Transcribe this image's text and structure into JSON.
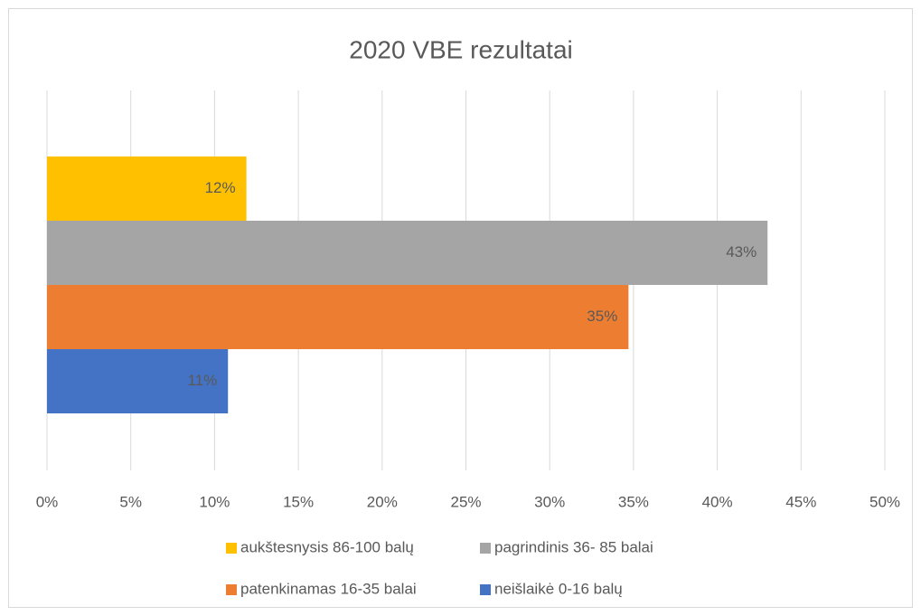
{
  "chart_data": {
    "type": "bar",
    "orientation": "horizontal",
    "title": "2020 VBE rezultatai",
    "categories": [
      null
    ],
    "series": [
      {
        "name": "aukštesnysis 86-100 balų",
        "color": "#ffc000",
        "values": [
          11.9
        ],
        "value_labels": [
          "12%"
        ]
      },
      {
        "name": "pagrindinis 36- 85 balai",
        "color": "#a5a5a5",
        "values": [
          43.0
        ],
        "value_labels": [
          "43%"
        ]
      },
      {
        "name": "patenkinamas 16-35 balai",
        "color": "#ed7d31",
        "values": [
          34.7
        ],
        "value_labels": [
          "35%"
        ]
      },
      {
        "name": "neišlaikė 0-16 balų",
        "color": "#4472c4",
        "values": [
          10.8
        ],
        "value_labels": [
          "11%"
        ]
      }
    ],
    "xlim": [
      0,
      50
    ],
    "xticks": [
      {
        "value": 0,
        "label": "0%"
      },
      {
        "value": 5,
        "label": "5%"
      },
      {
        "value": 10,
        "label": "10%"
      },
      {
        "value": 15,
        "label": "15%"
      },
      {
        "value": 20,
        "label": "20%"
      },
      {
        "value": 25,
        "label": "25%"
      },
      {
        "value": 30,
        "label": "30%"
      },
      {
        "value": 35,
        "label": "35%"
      },
      {
        "value": 40,
        "label": "40%"
      },
      {
        "value": 45,
        "label": "45%"
      },
      {
        "value": 50,
        "label": "50%"
      }
    ],
    "grid": true,
    "legend": "bottom"
  }
}
